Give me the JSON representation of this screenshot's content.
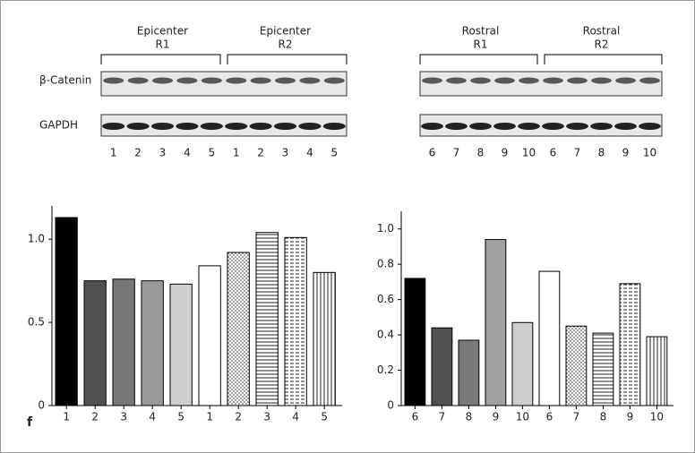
{
  "panel_label": "f",
  "blots": {
    "rows": [
      "β-Catenin",
      "GAPDH"
    ],
    "panels": [
      {
        "groups": [
          {
            "name": "Epicenter",
            "sub": "R1"
          },
          {
            "name": "Epicenter",
            "sub": "R2"
          }
        ],
        "lanes": [
          "1",
          "2",
          "3",
          "4",
          "5",
          "1",
          "2",
          "3",
          "4",
          "5"
        ]
      },
      {
        "groups": [
          {
            "name": "Rostral",
            "sub": "R1"
          },
          {
            "name": "Rostral",
            "sub": "R2"
          }
        ],
        "lanes": [
          "6",
          "7",
          "8",
          "9",
          "10",
          "6",
          "7",
          "8",
          "9",
          "10"
        ]
      }
    ]
  },
  "chart_data": [
    {
      "type": "bar",
      "categories": [
        "1",
        "2",
        "3",
        "4",
        "5",
        "1",
        "2",
        "3",
        "4",
        "5"
      ],
      "values": [
        1.13,
        0.75,
        0.76,
        0.75,
        0.73,
        0.84,
        0.92,
        1.04,
        1.01,
        0.8
      ],
      "fills": [
        "#000000",
        "#505050",
        "#777777",
        "#9a9a9a",
        "#cfcfcf",
        "#ffffff",
        "dots",
        "hlines",
        "dashes",
        "vlines"
      ],
      "ylim": [
        0,
        1.2
      ],
      "yticks": [
        0,
        0.5,
        {
          "value": 1,
          "label": "1.0"
        }
      ]
    },
    {
      "type": "bar",
      "categories": [
        "6",
        "7",
        "8",
        "9",
        "10",
        "6",
        "7",
        "8",
        "9",
        "10"
      ],
      "values": [
        0.72,
        0.44,
        0.37,
        0.94,
        0.47,
        0.76,
        0.45,
        0.41,
        0.69,
        0.39
      ],
      "fills": [
        "#000000",
        "#505050",
        "#7a7a7a",
        "#a0a0a0",
        "#cfcfcf",
        "#ffffff",
        "dots",
        "hlines",
        "dashes",
        "vlines"
      ],
      "ylim": [
        0,
        1.1
      ],
      "yticks": [
        0,
        0.2,
        0.4,
        0.6,
        0.8,
        {
          "value": 1,
          "label": "1.0"
        }
      ]
    }
  ]
}
